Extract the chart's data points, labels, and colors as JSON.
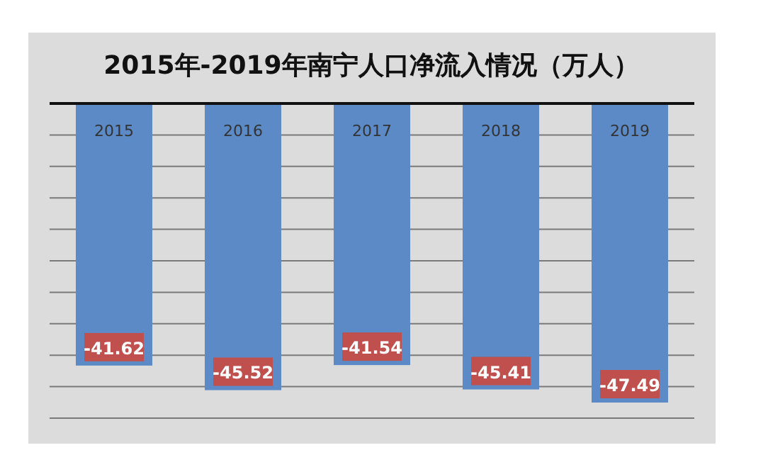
{
  "chart_data": {
    "type": "bar",
    "title": "2015年-2019年南宁人口净流入情况（万人）",
    "categories": [
      "2015",
      "2016",
      "2017",
      "2018",
      "2019"
    ],
    "series": [
      {
        "color": "#5b8ac6",
        "values": [
          -41.62,
          -45.52,
          -41.54,
          -45.41,
          -47.49
        ]
      }
    ],
    "data_labels": true,
    "grid": "y",
    "tick_labels": "x"
  }
}
